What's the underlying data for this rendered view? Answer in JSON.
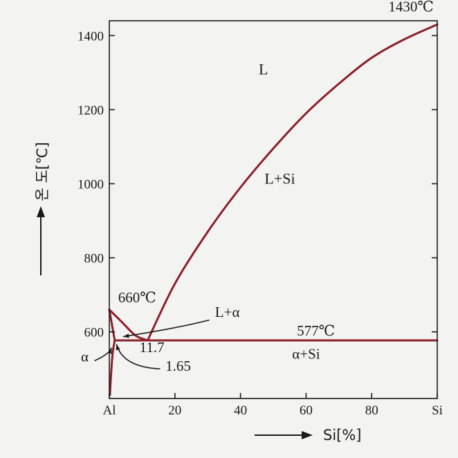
{
  "chart_data": {
    "type": "line",
    "title": "",
    "xlabel": "Si[%]",
    "ylabel": "온 도[℃]",
    "xlim": [
      0,
      100
    ],
    "ylim": [
      420,
      1440
    ],
    "x_ticks": [
      {
        "value": 0,
        "label": "Al"
      },
      {
        "value": 20,
        "label": "20"
      },
      {
        "value": 40,
        "label": "40"
      },
      {
        "value": 60,
        "label": "60"
      },
      {
        "value": 80,
        "label": "80"
      },
      {
        "value": 100,
        "label": "Si"
      }
    ],
    "y_ticks": [
      {
        "value": 600,
        "label": "600"
      },
      {
        "value": 800,
        "label": "800"
      },
      {
        "value": 1000,
        "label": "1000"
      },
      {
        "value": 1200,
        "label": "1200"
      },
      {
        "value": 1400,
        "label": "1400"
      }
    ],
    "grid": false,
    "series": [
      {
        "id": "liquidus-al",
        "values": [
          [
            0,
            660
          ],
          [
            4,
            625
          ],
          [
            8,
            590
          ],
          [
            11.7,
            577
          ]
        ]
      },
      {
        "id": "liquidus-si",
        "values": [
          [
            11.7,
            577
          ],
          [
            20,
            730
          ],
          [
            30,
            870
          ],
          [
            40,
            990
          ],
          [
            50,
            1095
          ],
          [
            60,
            1190
          ],
          [
            70,
            1270
          ],
          [
            80,
            1340
          ],
          [
            90,
            1390
          ],
          [
            100,
            1430
          ]
        ]
      },
      {
        "id": "solidus-al",
        "values": [
          [
            0,
            660
          ],
          [
            1.65,
            577
          ]
        ]
      },
      {
        "id": "solvus",
        "values": [
          [
            1.65,
            577
          ],
          [
            1.0,
            540
          ],
          [
            0.5,
            480
          ],
          [
            0.2,
            430
          ]
        ]
      },
      {
        "id": "eutectic",
        "values": [
          [
            1.65,
            577
          ],
          [
            100,
            577
          ]
        ]
      }
    ],
    "annotations": [
      {
        "text": "1430℃",
        "x": 92,
        "y": 1465
      },
      {
        "text": "L",
        "x": 47,
        "y": 1295
      },
      {
        "text": "L+Si",
        "x": 52,
        "y": 1000
      },
      {
        "text": "660℃",
        "x": 8.5,
        "y": 680
      },
      {
        "text": "L+α",
        "x": 36,
        "y": 640
      },
      {
        "text": "577℃",
        "x": 63,
        "y": 590
      },
      {
        "text": "11.7",
        "x": 13,
        "y": 545
      },
      {
        "text": "1.65",
        "x": 21,
        "y": 495
      },
      {
        "text": "α+Si",
        "x": 60,
        "y": 527
      },
      {
        "text": "α",
        "x": -7.5,
        "y": 520
      }
    ]
  },
  "colors": {
    "curve": "#8b1f2a",
    "axis": "#1a1a1a",
    "background": "#f3f3f1"
  }
}
